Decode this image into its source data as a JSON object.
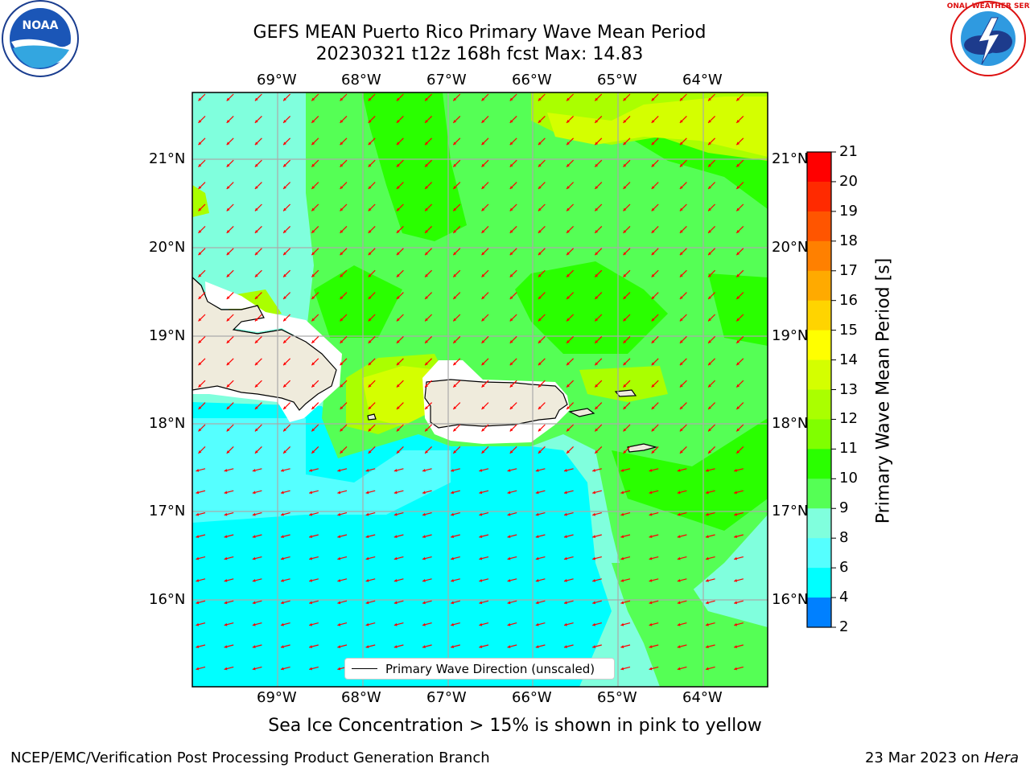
{
  "title": {
    "line1": "GEFS MEAN Puerto Rico Primary Wave Mean Period",
    "line2": "20230321 t12z 168h fcst   Max: 14.83"
  },
  "lon_ticks": [
    "69°W",
    "68°W",
    "67°W",
    "66°W",
    "65°W",
    "64°W"
  ],
  "lat_ticks": [
    "21°N",
    "20°N",
    "19°N",
    "18°N",
    "17°N",
    "16°N"
  ],
  "legend": {
    "label": "Primary Wave Direction (unscaled)"
  },
  "colorbar": {
    "label": "Primary Wave Mean Period [s]",
    "ticks": [
      "21",
      "20",
      "19",
      "18",
      "17",
      "16",
      "15",
      "14",
      "13",
      "12",
      "11",
      "10",
      "9",
      "8",
      "6",
      "4",
      "2"
    ],
    "colors": [
      "#ff0000",
      "#ff2a00",
      "#ff5500",
      "#ff8000",
      "#ffaa00",
      "#ffd400",
      "#ffff00",
      "#d4ff00",
      "#aaff00",
      "#80ff00",
      "#2aff00",
      "#55ff55",
      "#80ffdd",
      "#55ffff",
      "#00ffff",
      "#0080ff",
      "#0000ff"
    ]
  },
  "caption": "Sea Ice Concentration > 15% is shown in pink to yellow",
  "footer": {
    "left": "NCEP/EMC/Verification Post Processing Product Generation Branch",
    "right_prefix": "23 Mar 2023 on ",
    "right_machine": "Hera"
  },
  "logos": {
    "left": "NOAA",
    "right": "NATIONAL WEATHER SERVICE"
  },
  "arrow_color": "#ff0000"
}
